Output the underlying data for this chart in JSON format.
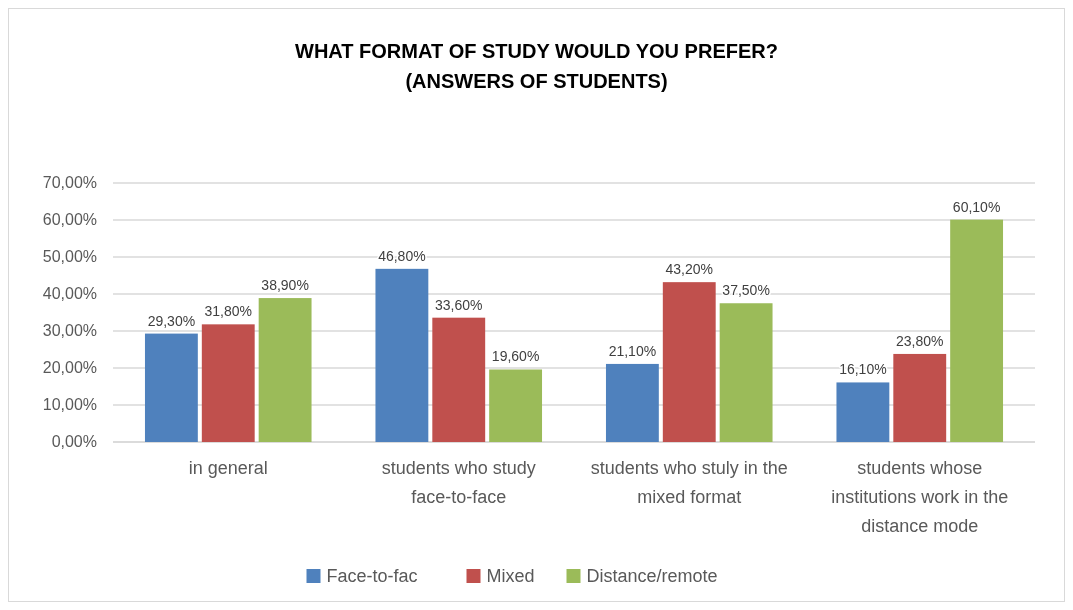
{
  "chart_data": {
    "type": "bar",
    "title": "WHAT FORMAT OF STUDY WOULD YOU PREFER?\n(ANSWERS OF STUDENTS)",
    "categories": [
      "in general",
      "students who study face-to-face",
      "students who stuly in the mixed format",
      "students whose institutions work in the distance mode"
    ],
    "series": [
      {
        "name": "Face-to-fac",
        "color": "#4f81bd",
        "values": [
          29.3,
          46.8,
          21.1,
          16.1
        ],
        "value_labels": [
          "29,30%",
          "46,80%",
          "21,10%",
          "16,10%"
        ]
      },
      {
        "name": "Mixed",
        "color": "#c0504d",
        "values": [
          31.8,
          33.6,
          43.2,
          23.8
        ],
        "value_labels": [
          "31,80%",
          "33,60%",
          "43,20%",
          "23,80%"
        ]
      },
      {
        "name": "Distance/remote",
        "color": "#9bbb59",
        "values": [
          38.9,
          19.6,
          37.5,
          60.1
        ],
        "value_labels": [
          "38,90%",
          "19,60%",
          "37,50%",
          "60,10%"
        ]
      }
    ],
    "ylim": [
      0,
      70
    ],
    "yticks": [
      {
        "value": 0,
        "label": "0,00%"
      },
      {
        "value": 10,
        "label": "10,00%"
      },
      {
        "value": 20,
        "label": "20,00%"
      },
      {
        "value": 30,
        "label": "30,00%"
      },
      {
        "value": 40,
        "label": "40,00%"
      },
      {
        "value": 50,
        "label": "50,00%"
      },
      {
        "value": 60,
        "label": "60,00%"
      },
      {
        "value": 70,
        "label": "70,00%"
      }
    ],
    "grid": "y",
    "legend": "bottom"
  }
}
